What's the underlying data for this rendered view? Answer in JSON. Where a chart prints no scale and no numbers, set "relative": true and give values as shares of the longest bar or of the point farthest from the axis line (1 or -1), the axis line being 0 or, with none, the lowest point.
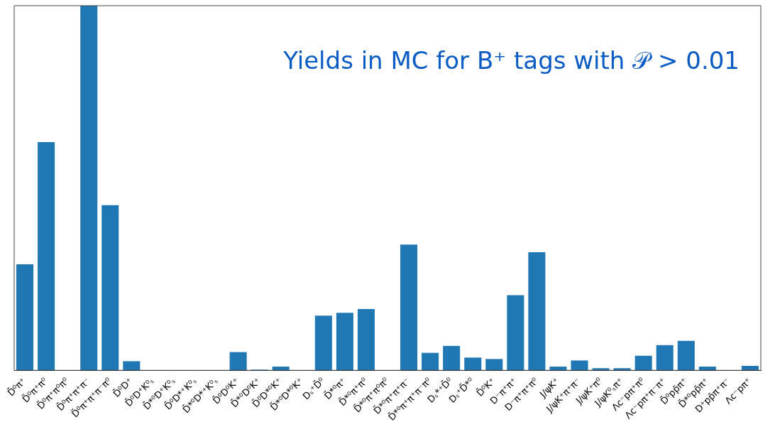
{
  "chart_data": {
    "type": "bar",
    "title": "Yields in MC for B⁺ tags with 𝒫 > 0.01",
    "relative": true,
    "color": "#1f77b4",
    "grid": false,
    "legend": false,
    "categories": [
      "D̄⁰π⁺",
      "D̄⁰π⁺π⁰",
      "D̄⁰π⁺π⁰π⁰",
      "D̄⁰π⁺π⁺π⁻",
      "D̄⁰π⁺π⁺π⁻π⁰",
      "D̄⁰D⁺",
      "D̄⁰D⁺K⁰ₛ",
      "D̄*⁰D⁺K⁰ₛ",
      "D̄⁰D*⁺K⁰ₛ",
      "D̄*⁰D*⁺K⁰ₛ",
      "D̄⁰D⁰K⁺",
      "D̄*⁰D⁰K⁺",
      "D̄⁰D*⁰K⁺",
      "D̄*⁰D*⁰K⁺",
      "Dₛ⁺D̄⁰",
      "D̄*⁰π⁺",
      "D̄*⁰π⁺π⁰",
      "D̄*⁰π⁺π⁰π⁰",
      "D̄*⁰π⁺π⁺π⁻",
      "D̄*⁰π⁺π⁺π⁻π⁰",
      "Dₛ*⁺D̄⁰",
      "Dₛ⁺D̄*⁰",
      "D̄⁰K⁺",
      "D⁻π⁺π⁺",
      "D⁻π⁺π⁺π⁰",
      "J/ψK⁺",
      "J/ψK⁺π⁺π⁻",
      "J/ψK⁺π⁰",
      "J/ψK⁰ₛπ⁺",
      "Λc⁻pπ⁺π⁰",
      "Λc⁻pπ⁺π⁻π⁺",
      "D̄⁰pp̄π⁺",
      "D̄*⁰pp̄π⁺",
      "D⁺pp̄π⁺π⁻",
      "Λc⁻pπ⁺"
    ],
    "values": [
      0.291,
      0.626,
      0,
      1,
      0.453,
      0.025,
      0,
      0,
      0,
      0,
      0.05,
      0.002,
      0.01,
      0,
      0.15,
      0.158,
      0.168,
      0,
      0.345,
      0.048,
      0.067,
      0.035,
      0.031,
      0.206,
      0.324,
      0.01,
      0.027,
      0.006,
      0.006,
      0.04,
      0.069,
      0.081,
      0.01,
      0,
      0.012
    ]
  }
}
